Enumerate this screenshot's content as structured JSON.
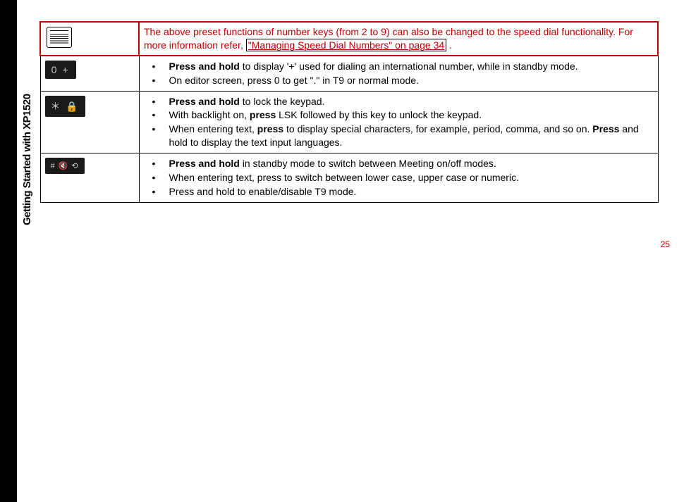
{
  "sidebar_label": "Getting Started with XP1520",
  "page_number": "25",
  "note": {
    "prefix": "The above preset functions of number keys (from 2 to 9) can also be changed to the speed dial functionality. For more information refer, ",
    "link": "\"Managing Speed Dial Numbers\" on page 34",
    "suffix": " ."
  },
  "rows": [
    {
      "icon_label": "0 +",
      "items": [
        {
          "bold_prefix": "Press and hold",
          "rest": " to display '+' used for dialing an international number, while in standby mode."
        },
        {
          "bold_prefix": "",
          "rest": "On editor screen, press 0 to get \".\" in T9 or normal mode."
        }
      ]
    },
    {
      "icon_label": "＊ 🔒",
      "items": [
        {
          "bold_prefix": "Press and hold",
          "rest": " to lock the keypad."
        },
        {
          "html": "With backlight on, <span class=\"bold\">press</span> LSK followed by this key to unlock the keypad."
        },
        {
          "html": "When entering text, <span class=\"bold\">press</span> to display special characters, for example, period, comma, and so on. <span class=\"bold\">Press</span> and hold to display the text input languages."
        }
      ]
    },
    {
      "icon_label": "# 🔇 ⟲",
      "items": [
        {
          "bold_prefix": "Press and hold",
          "rest": " in standby mode to switch between Meeting on/off modes."
        },
        {
          "bold_prefix": "",
          "rest": "When entering text, press to switch between lower case, upper case or numeric."
        },
        {
          "bold_prefix": "",
          "rest": "Press and hold to enable/disable T9 mode."
        }
      ]
    }
  ]
}
